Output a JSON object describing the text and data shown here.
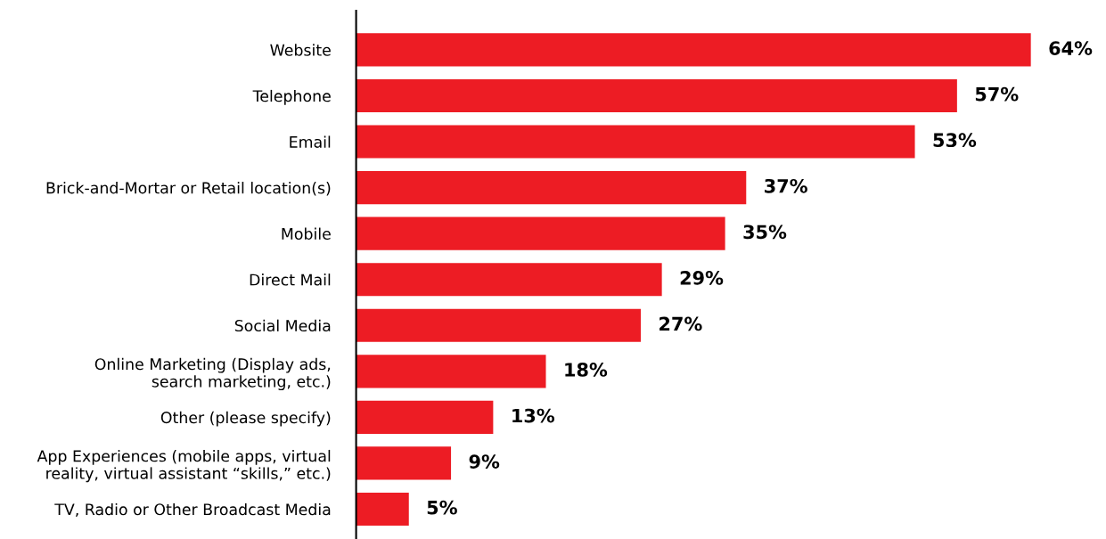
{
  "chart_data": {
    "type": "bar",
    "orientation": "horizontal",
    "categories": [
      "Website",
      "Telephone",
      "Email",
      "Brick-and-Mortar or Retail location(s)",
      "Mobile",
      "Direct Mail",
      "Social Media",
      "Online Marketing (Display ads,\nsearch marketing, etc.)",
      "Other (please specify)",
      "App Experiences (mobile apps, virtual\nreality, virtual assistant “skills,” etc.)",
      "TV, Radio or Other Broadcast Media"
    ],
    "values": [
      64,
      57,
      53,
      37,
      35,
      29,
      27,
      18,
      13,
      9,
      5
    ],
    "value_labels": [
      "64%",
      "57%",
      "53%",
      "37%",
      "35%",
      "29%",
      "27%",
      "18%",
      "13%",
      "9%",
      "5%"
    ],
    "color": "#ed1c24"
  }
}
